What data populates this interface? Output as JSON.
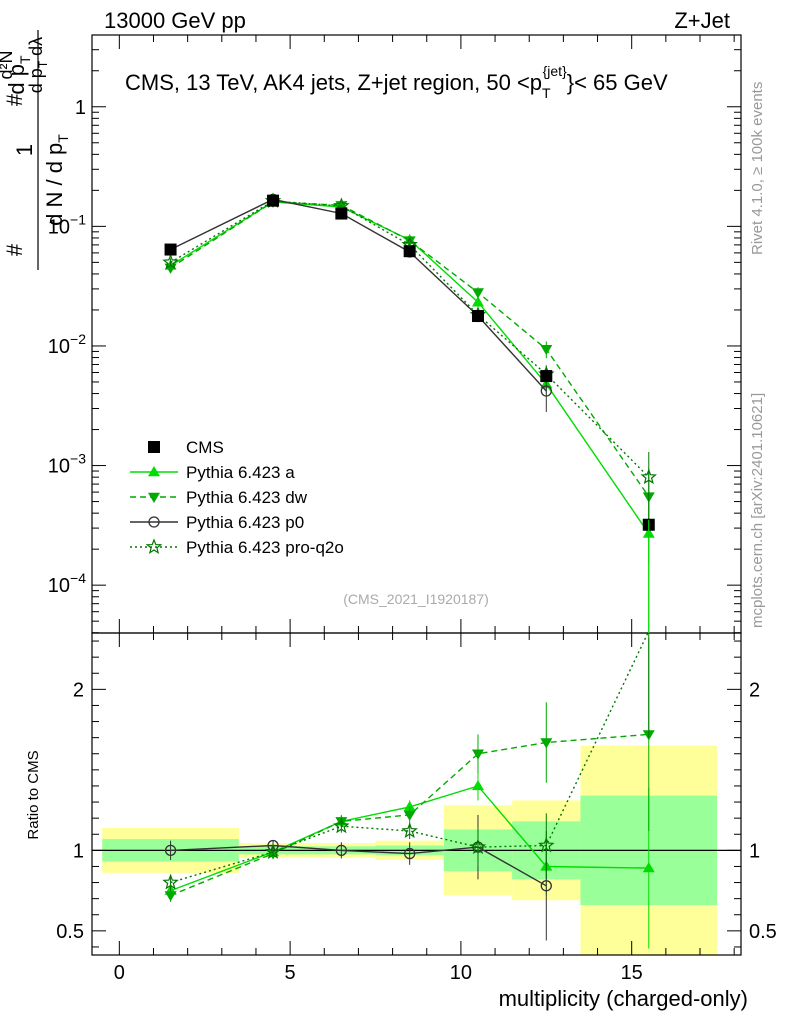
{
  "header": {
    "left": "13000 GeV pp",
    "right": "Z+Jet"
  },
  "side_labels": {
    "rivet": "Rivet 4.1.0, ≥ 100k events",
    "mcplots": "mcplots.cern.ch [arXiv:2401.10621]"
  },
  "chart_data": {
    "type": "line",
    "title": "CMS, 13 TeV, AK4 jets, Z+jet region, 50 <p",
    "title_sup": "{jet}",
    "title_sub": "T",
    "title_end": "}< 65 GeV",
    "watermark": "(CMS_2021_I1920187)",
    "xlabel": "multiplicity (charged-only)",
    "ylabel_upper": "1/N dN/dλ (per p_T)",
    "ylabel_lower": "Ratio to CMS",
    "xlim": [
      -0.8,
      18.2
    ],
    "ylim_upper_log10": [
      -4.4,
      0.6
    ],
    "ylim_lower": [
      0.35,
      2.35
    ],
    "x_ticks": [
      0,
      5,
      10,
      15
    ],
    "x_tick_labels": [
      "0",
      "5",
      "10",
      "15"
    ],
    "y_ticks_upper": [
      -4,
      -3,
      -2,
      -1,
      0
    ],
    "y_tick_labels_upper": [
      {
        "base": "10",
        "exp": "−4"
      },
      {
        "base": "10",
        "exp": "−3"
      },
      {
        "base": "10",
        "exp": "−2"
      },
      {
        "base": "10",
        "exp": "−1"
      },
      {
        "base": "1",
        "exp": ""
      }
    ],
    "y_ticks_lower": [
      0.5,
      1,
      2
    ],
    "y_tick_labels_lower": [
      "0.5",
      "1",
      "2"
    ],
    "data": {
      "name": "CMS",
      "x": [
        1.5,
        4.5,
        6.5,
        8.5,
        10.5,
        12.5,
        15.5
      ],
      "y": [
        0.064,
        0.164,
        0.128,
        0.062,
        0.0178,
        0.0056,
        0.00032
      ],
      "xerr_edges": [
        [
          -0.5,
          3.5
        ],
        [
          3.5,
          5.5
        ],
        [
          5.5,
          7.5
        ],
        [
          7.5,
          9.5
        ],
        [
          9.5,
          11.5
        ],
        [
          11.5,
          13.5
        ],
        [
          13.5,
          17.5
        ]
      ],
      "band_green": [
        0.07,
        0.025,
        0.025,
        0.03,
        0.13,
        0.18,
        0.34
      ],
      "band_yellow": [
        0.14,
        0.045,
        0.045,
        0.06,
        0.28,
        0.31,
        0.65
      ]
    },
    "series": [
      {
        "name": "Pythia 6.423 a",
        "color": "#00dd00",
        "dash": "",
        "marker": "triangle-up",
        "x": [
          1.5,
          4.5,
          6.5,
          8.5,
          10.5,
          12.5,
          15.5
        ],
        "y": [
          0.047,
          0.16,
          0.145,
          0.077,
          0.0232,
          0.0048,
          0.00027
        ],
        "yerr": [
          0.004,
          0.004,
          0.004,
          0.003,
          0.002,
          0.0008,
          0.00026
        ],
        "ratio": [
          0.75,
          0.99,
          1.18,
          1.27,
          1.4,
          0.9,
          0.89
        ],
        "ratio_err": [
          0.04,
          0.02,
          0.03,
          0.04,
          0.09,
          0.18,
          0.5
        ]
      },
      {
        "name": "Pythia 6.423 dw",
        "color": "#00aa00",
        "dash": "6,4",
        "marker": "triangle-down",
        "x": [
          1.5,
          4.5,
          6.5,
          8.5,
          10.5,
          12.5,
          15.5
        ],
        "y": [
          0.045,
          0.16,
          0.15,
          0.076,
          0.028,
          0.0094,
          0.00055
        ],
        "yerr": [
          0.004,
          0.004,
          0.004,
          0.003,
          0.003,
          0.0015,
          0.0004
        ],
        "ratio": [
          0.72,
          0.98,
          1.18,
          1.22,
          1.6,
          1.67,
          1.72
        ],
        "ratio_err": [
          0.04,
          0.02,
          0.04,
          0.05,
          0.12,
          0.25,
          0.6
        ]
      },
      {
        "name": "Pythia 6.423 p0",
        "color": "#333333",
        "dash": "",
        "marker": "circle-open",
        "x": [
          1.5,
          4.5,
          6.5,
          8.5,
          10.5,
          12.5
        ],
        "y": [
          0.064,
          0.168,
          0.128,
          0.061,
          0.0178,
          0.0042
        ],
        "yerr": [
          0.004,
          0.004,
          0.004,
          0.003,
          0.002,
          0.0014
        ],
        "ratio": [
          1.0,
          1.03,
          1.0,
          0.98,
          1.02,
          0.78
        ],
        "ratio_err": [
          0.06,
          0.03,
          0.05,
          0.07,
          0.2,
          0.34
        ]
      },
      {
        "name": "Pythia 6.423 pro-q2o",
        "color": "#007700",
        "dash": "2,3",
        "marker": "star",
        "x": [
          1.5,
          4.5,
          6.5,
          8.5,
          10.5,
          12.5,
          15.5
        ],
        "y": [
          0.05,
          0.163,
          0.148,
          0.07,
          0.0182,
          0.0058,
          0.0008
        ],
        "yerr": [
          0.004,
          0.004,
          0.004,
          0.003,
          0.002,
          0.0011,
          0.0005
        ],
        "ratio": [
          0.8,
          0.99,
          1.15,
          1.12,
          1.02,
          1.03,
          2.4
        ],
        "ratio_err": [
          0.05,
          0.02,
          0.04,
          0.05,
          0.12,
          0.2,
          0.7
        ]
      }
    ],
    "legend_position": "middle-left"
  }
}
